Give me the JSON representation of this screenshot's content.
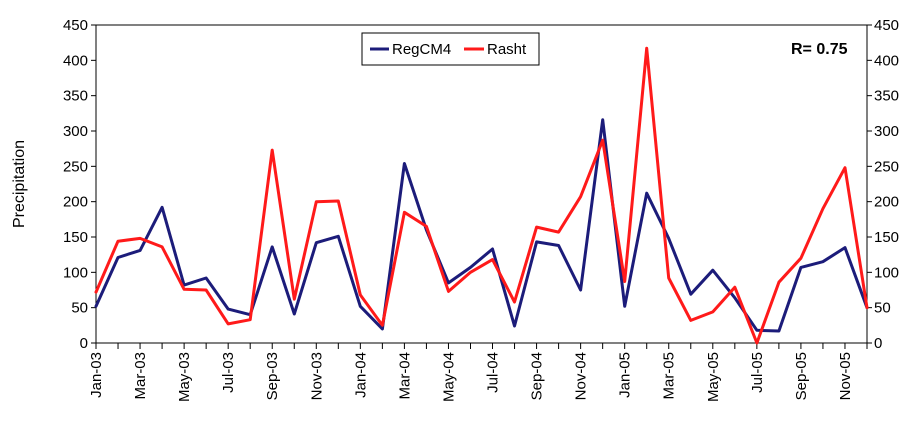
{
  "chart_data": {
    "type": "line",
    "ylabel": "Precipitation",
    "ylim": [
      0,
      450
    ],
    "yticks": [
      0,
      50,
      100,
      150,
      200,
      250,
      300,
      350,
      400,
      450
    ],
    "secondary_y_axis": true,
    "grid": false,
    "legend_position": "top-center",
    "annotation": "R= 0.75",
    "x": [
      "Jan-03",
      "Feb-03",
      "Mar-03",
      "Apr-03",
      "May-03",
      "Jun-03",
      "Jul-03",
      "Aug-03",
      "Sep-03",
      "Oct-03",
      "Nov-03",
      "Dec-03",
      "Jan-04",
      "Feb-04",
      "Mar-04",
      "Apr-04",
      "May-04",
      "Jun-04",
      "Jul-04",
      "Aug-04",
      "Sep-04",
      "Oct-04",
      "Nov-04",
      "Dec-04",
      "Jan-05",
      "Feb-05",
      "Mar-05",
      "Apr-05",
      "May-05",
      "Jun-05",
      "Jul-05",
      "Aug-05",
      "Sep-05",
      "Oct-05",
      "Nov-05",
      "Dec-05"
    ],
    "x_tick_labels": [
      "Jan-03",
      "Mar-03",
      "May-03",
      "Jul-03",
      "Sep-03",
      "Nov-03",
      "Jan-04",
      "Mar-04",
      "May-04",
      "Jul-04",
      "Sep-04",
      "Nov-04",
      "Jan-05",
      "Mar-05",
      "May-05",
      "Jul-05",
      "Sep-05",
      "Nov-05"
    ],
    "series": [
      {
        "name": "RegCM4",
        "color": "#1c1c7a",
        "values": [
          52,
          121,
          131,
          192,
          82,
          92,
          48,
          40,
          136,
          41,
          142,
          151,
          52,
          20,
          254,
          160,
          85,
          107,
          133,
          24,
          143,
          138,
          75,
          316,
          52,
          212,
          148,
          69,
          103,
          64,
          18,
          17,
          107,
          115,
          135,
          50
        ]
      },
      {
        "name": "Rasht",
        "color": "#ff1a1a",
        "values": [
          72,
          144,
          148,
          136,
          76,
          75,
          27,
          33,
          273,
          62,
          200,
          201,
          68,
          25,
          185,
          165,
          73,
          100,
          118,
          58,
          164,
          157,
          207,
          287,
          87,
          417,
          92,
          32,
          44,
          79,
          0,
          86,
          120,
          190,
          248,
          50
        ]
      }
    ]
  }
}
